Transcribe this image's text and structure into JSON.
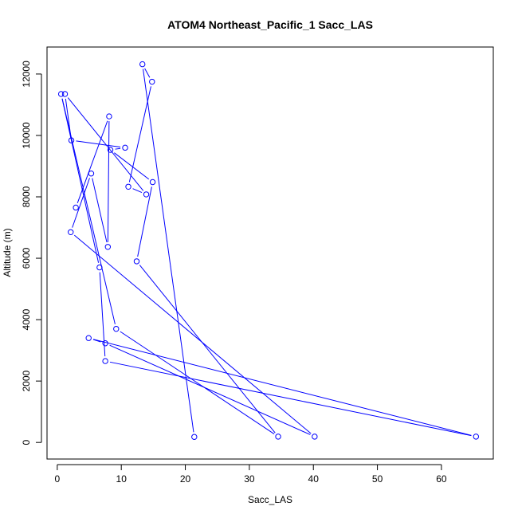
{
  "chart_data": {
    "type": "line",
    "title": "ATOM4 Northeast_Pacific_1 Sacc_LAS",
    "xlabel": "Sacc_LAS",
    "ylabel": "Altitude (m)",
    "xlim": [
      -1.6,
      68.1
    ],
    "ylim": [
      -540,
      12880
    ],
    "x_ticks": [
      0,
      10,
      20,
      30,
      40,
      50,
      60
    ],
    "y_ticks": [
      0,
      2000,
      4000,
      6000,
      8000,
      10000,
      12000
    ],
    "grid": false,
    "legend": "none",
    "series_color": "#0000ff",
    "marker": "open-circle",
    "x": [
      21.4,
      13.3,
      14.8,
      11.1,
      13.9,
      1.2,
      2.2,
      10.6,
      8.3,
      14.9,
      12.4,
      34.5,
      9.2,
      0.6,
      6.6,
      7.5,
      65.4,
      4.9,
      7.5,
      40.2,
      2.1,
      5.3,
      7.9,
      8.1,
      2.9
    ],
    "y": [
      180,
      12320,
      11750,
      8330,
      8080,
      11350,
      9840,
      9600,
      9530,
      8480,
      5900,
      190,
      3700,
      11350,
      5700,
      2650,
      190,
      3400,
      3230,
      190,
      6850,
      8760,
      6370,
      10620,
      7650
    ]
  }
}
